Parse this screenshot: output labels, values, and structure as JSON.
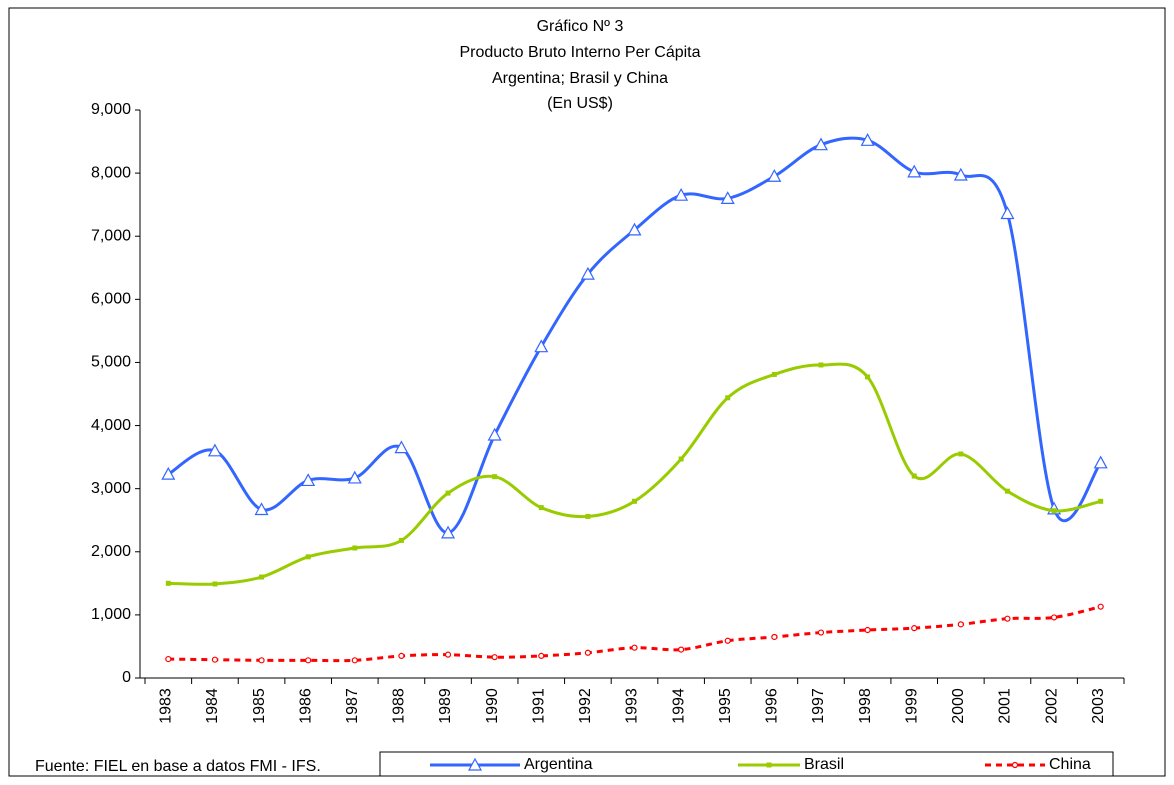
{
  "chart_data": {
    "type": "line",
    "title": [
      "Gráfico Nº 3",
      "Producto Bruto Interno Per Cápita",
      "Argentina; Brasil y China",
      "(En US$)"
    ],
    "source": "Fuente: FIEL en base a datos FMI - IFS.",
    "categories": [
      "1983",
      "1984",
      "1985",
      "1986",
      "1987",
      "1988",
      "1989",
      "1990",
      "1991",
      "1992",
      "1993",
      "1994",
      "1995",
      "1996",
      "1997",
      "1998",
      "1999",
      "2000",
      "2001",
      "2002",
      "2003"
    ],
    "series": [
      {
        "name": "Argentina",
        "color": "#3366ff",
        "marker": "triangle",
        "dashed": false,
        "values": [
          3230,
          3600,
          2670,
          3130,
          3170,
          3650,
          2300,
          3850,
          5250,
          6400,
          7100,
          7650,
          7600,
          7950,
          8450,
          8520,
          8020,
          7970,
          7360,
          2680,
          3410
        ]
      },
      {
        "name": "Brasil",
        "color": "#99cc00",
        "marker": "square",
        "dashed": false,
        "values": [
          1500,
          1490,
          1600,
          1920,
          2060,
          2180,
          2930,
          3190,
          2700,
          2560,
          2800,
          3470,
          4440,
          4810,
          4960,
          4770,
          3200,
          3550,
          2960,
          2650,
          2800
        ]
      },
      {
        "name": "China",
        "color": "#ff0000",
        "marker": "circle",
        "dashed": true,
        "values": [
          300,
          290,
          280,
          280,
          280,
          350,
          370,
          330,
          350,
          400,
          480,
          450,
          590,
          650,
          720,
          760,
          790,
          850,
          940,
          960,
          1130
        ]
      }
    ],
    "ylim": [
      0,
      9000
    ],
    "yticks": [
      0,
      {
        "value": 1000,
        "label": "1,000"
      },
      {
        "value": 2000,
        "label": "2,000"
      },
      {
        "value": 3000,
        "label": "3,000"
      },
      {
        "value": 4000,
        "label": "4,000"
      },
      {
        "value": 5000,
        "label": "5,000"
      },
      {
        "value": 6000,
        "label": "6,000"
      },
      {
        "value": 7000,
        "label": "7,000"
      },
      {
        "value": 8000,
        "label": "8,000"
      },
      {
        "value": 9000,
        "label": "9,000"
      }
    ],
    "legend": "bottom",
    "grid": false
  }
}
